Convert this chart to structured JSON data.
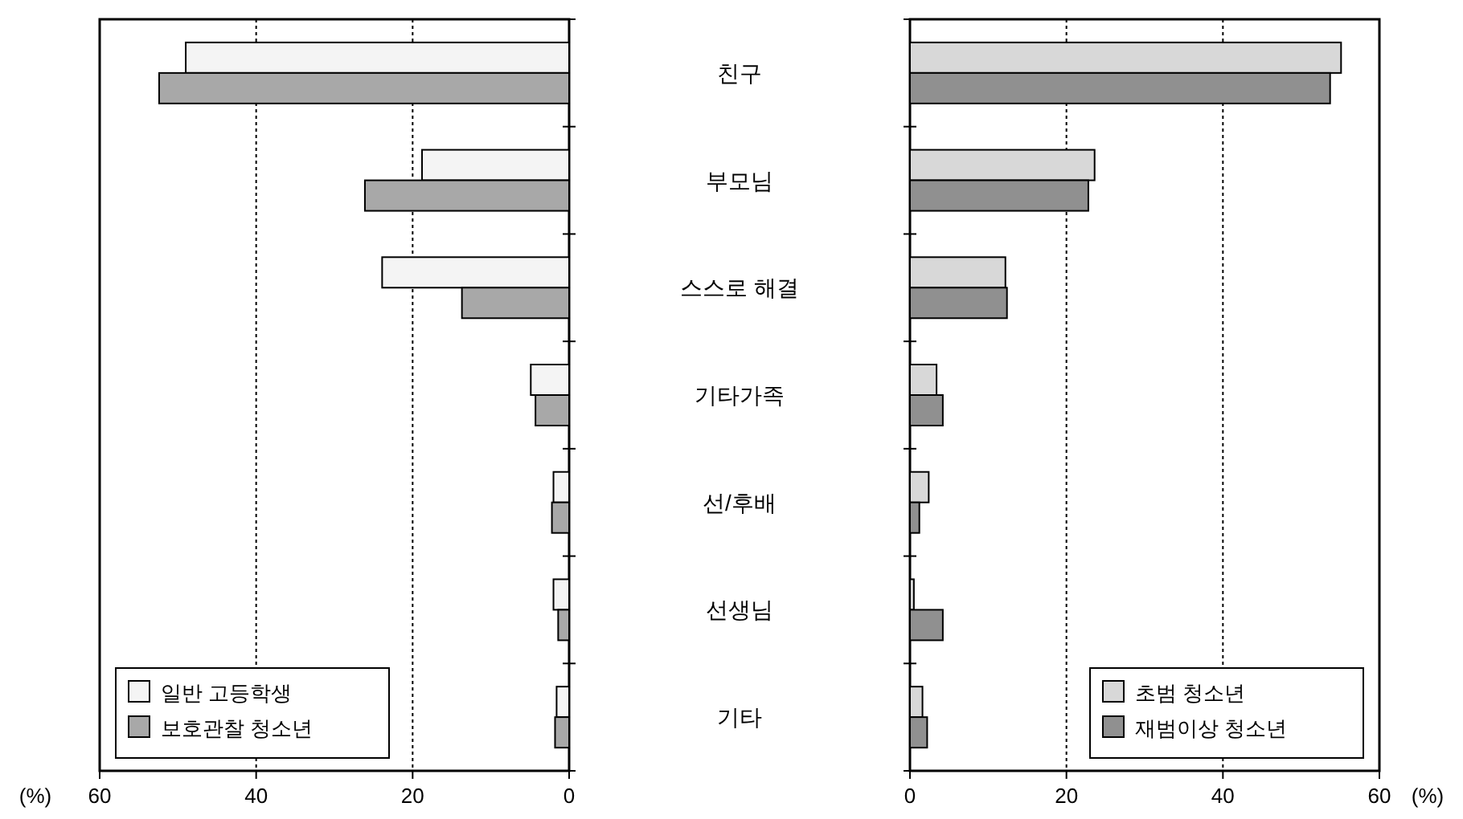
{
  "chart_data": [
    {
      "type": "bar",
      "orientation": "horizontal",
      "categories": [
        "친구",
        "부모님",
        "스스로 해결",
        "기타가족",
        "선/후배",
        "선생님",
        "기타"
      ],
      "series": [
        {
          "name": "일반 고등학생",
          "color": "#f4f4f4",
          "values": [
            49,
            18.8,
            23.9,
            4.9,
            2,
            2,
            1.6
          ]
        },
        {
          "name": "보호관찰 청소년",
          "color": "#a8a8a8",
          "values": [
            52.4,
            26.1,
            13.7,
            4.3,
            2.2,
            1.4,
            1.8
          ]
        }
      ],
      "xlim": [
        60,
        0
      ],
      "xticks": [
        60,
        40,
        20,
        0
      ],
      "xlabel": "(%)",
      "grid": "x",
      "legend": "bottom left"
    },
    {
      "type": "bar",
      "orientation": "horizontal",
      "categories": [
        null,
        null,
        null,
        null,
        null,
        null,
        null
      ],
      "series": [
        {
          "name": "초범 청소년",
          "color": "#d8d8d8",
          "values": [
            55.1,
            23.6,
            12.2,
            3.4,
            2.4,
            0.5,
            1.6
          ]
        },
        {
          "name": "재범이상 청소년",
          "color": "#909090",
          "values": [
            53.7,
            22.8,
            12.4,
            4.2,
            1.2,
            4.2,
            2.2
          ]
        }
      ],
      "xlim": [
        0,
        60
      ],
      "xticks": [
        0,
        20,
        40,
        60
      ],
      "xlabel": "(%)",
      "grid": "x",
      "legend": "bottom right"
    }
  ]
}
